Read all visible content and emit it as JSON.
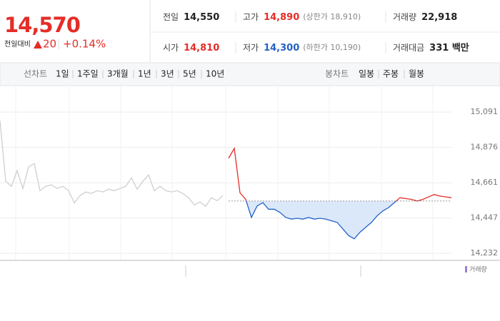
{
  "quote": {
    "price": "14,570",
    "change_label": "전일대비",
    "change": "20",
    "change_rate": "+0.14%"
  },
  "stats": [
    {
      "label": "전일",
      "value": "14,550",
      "color": "#222222"
    },
    {
      "label": "고가",
      "value": "14,890",
      "note": "(상한가 18,910)",
      "color": "#e52d27"
    },
    {
      "label": "거래량",
      "value": "22,918",
      "color": "#222222"
    },
    {
      "label": "시가",
      "value": "14,810",
      "color": "#e52d27"
    },
    {
      "label": "저가",
      "value": "14,300",
      "note": "(하한가 10,190)",
      "color": "#2361c8"
    },
    {
      "label": "거래대금",
      "value": "331 백만",
      "color": "#222222"
    }
  ],
  "tabs": {
    "line_label": "선차트",
    "line_periods": [
      "1일",
      "1주일",
      "3개월",
      "1년",
      "3년",
      "5년",
      "10년"
    ],
    "selected": 0,
    "candle_label": "봉차트",
    "candle_periods": [
      "일봉",
      "주봉",
      "월봉"
    ]
  },
  "chart_data": {
    "type": "line",
    "ylim": [
      14189,
      15252
    ],
    "yticks": [
      {
        "value": 14232,
        "label": "14,232"
      },
      {
        "value": 14447,
        "label": "14,447"
      },
      {
        "value": 14661,
        "label": "14,661"
      },
      {
        "value": 14876,
        "label": "14,876"
      },
      {
        "value": 15091,
        "label": "15,091"
      }
    ],
    "grid": true,
    "baseline": 14550,
    "volume_label": "거래량",
    "volume_color": "#9b7fd4",
    "series": [
      {
        "color": "#cfcfcf",
        "values": [
          15039,
          14670,
          14639,
          14735,
          14626,
          14757,
          14778,
          14613,
          14639,
          14648,
          14626,
          14639,
          14613,
          14539,
          14583,
          14605,
          14596,
          14613,
          14605,
          14622,
          14613,
          14626,
          14639,
          14691,
          14622,
          14670,
          14709,
          14613,
          14639,
          14613,
          14605,
          14613,
          14596,
          14570,
          14526,
          14544,
          14518,
          14570,
          14552,
          14583,
          null,
          null,
          null,
          null,
          null,
          null,
          null,
          null,
          null,
          null,
          null,
          null,
          null,
          null,
          null,
          null,
          null,
          null,
          null,
          null,
          null,
          null,
          null,
          null,
          null,
          null,
          null,
          null,
          null,
          null,
          null,
          null,
          null,
          null,
          null,
          null,
          null,
          null,
          null,
          null
        ]
      },
      {
        "color": "#2361c8",
        "up_color": "#e52d27",
        "fill": "#dbe8fa",
        "values": [
          null,
          null,
          null,
          null,
          null,
          null,
          null,
          null,
          null,
          null,
          null,
          null,
          null,
          null,
          null,
          null,
          null,
          null,
          null,
          null,
          null,
          null,
          null,
          null,
          null,
          null,
          null,
          null,
          null,
          null,
          null,
          null,
          null,
          null,
          null,
          null,
          null,
          null,
          null,
          null,
          14810,
          14870,
          14600,
          14560,
          14450,
          14520,
          14540,
          14500,
          14500,
          14480,
          14450,
          14440,
          14445,
          14440,
          14450,
          14440,
          14445,
          14440,
          14430,
          14420,
          14380,
          14340,
          14320,
          14360,
          14390,
          14420,
          14460,
          14490,
          14510,
          14540,
          14570,
          14565,
          14560,
          14550,
          14560,
          14575,
          14590,
          14580,
          14575,
          14570
        ]
      }
    ]
  }
}
